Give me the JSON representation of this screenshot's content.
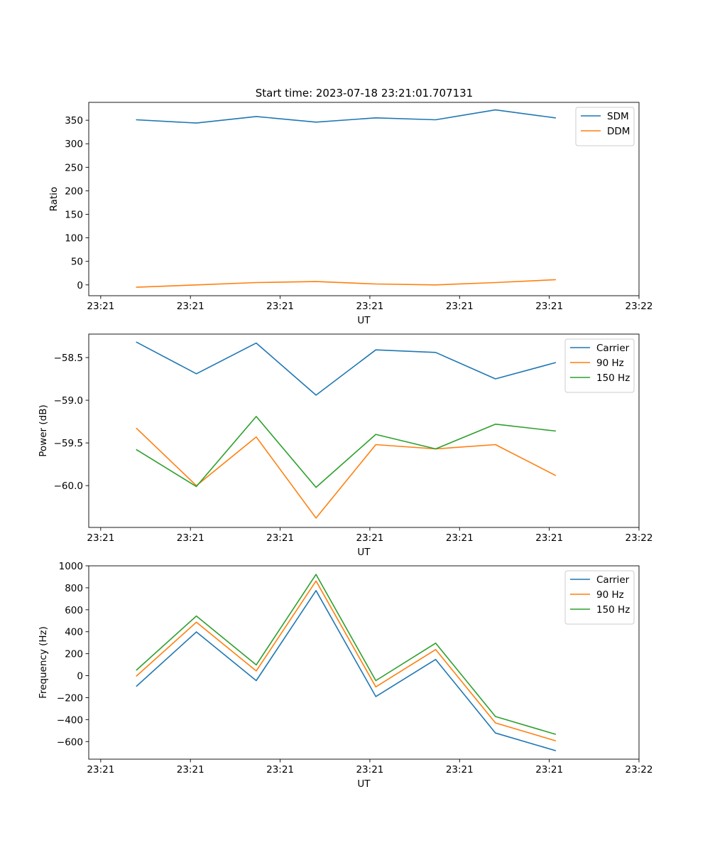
{
  "figure": {
    "title": "Start time: 2023-07-18 23:21:01.707131"
  },
  "colors": {
    "blue": "#1f77b4",
    "orange": "#ff7f0e",
    "green": "#2ca02c"
  },
  "chart_data": [
    {
      "type": "line",
      "title": "Start time: 2023-07-18 23:21:01.707131",
      "xlabel": "UT",
      "ylabel": "Ratio",
      "x": [
        1,
        2,
        3,
        4,
        5,
        6,
        7,
        8
      ],
      "xlim": [
        0.2,
        9.4
      ],
      "xticks": [
        0.4,
        1.9,
        3.4,
        4.9,
        6.4,
        7.9,
        9.4
      ],
      "xtick_labels": [
        "23:21",
        "23:21",
        "23:21",
        "23:21",
        "23:21",
        "23:21",
        "23:22"
      ],
      "ylim": [
        -23,
        388
      ],
      "yticks": [
        0,
        50,
        100,
        150,
        200,
        250,
        300,
        350
      ],
      "ytick_labels": [
        "0",
        "50",
        "100",
        "150",
        "200",
        "250",
        "300",
        "350"
      ],
      "grid": false,
      "legend": "top-right",
      "series": [
        {
          "name": "SDM",
          "color": "#1f77b4",
          "values": [
            351,
            344,
            358,
            346,
            355,
            351,
            372,
            355
          ]
        },
        {
          "name": "DDM",
          "color": "#ff7f0e",
          "values": [
            -5,
            0,
            5,
            7,
            2,
            0,
            5,
            11
          ]
        }
      ]
    },
    {
      "type": "line",
      "title": "",
      "xlabel": "UT",
      "ylabel": "Power (dB)",
      "x": [
        1,
        2,
        3,
        4,
        5,
        6,
        7,
        8
      ],
      "xlim": [
        0.2,
        9.4
      ],
      "xticks": [
        0.4,
        1.9,
        3.4,
        4.9,
        6.4,
        7.9,
        9.4
      ],
      "xtick_labels": [
        "23:21",
        "23:21",
        "23:21",
        "23:21",
        "23:21",
        "23:21",
        "23:22"
      ],
      "ylim": [
        -60.49,
        -58.225
      ],
      "yticks": [
        -60.0,
        -59.5,
        -59.0,
        -58.5
      ],
      "ytick_labels": [
        "−60.0",
        "−59.5",
        "−59.0",
        "−58.5"
      ],
      "grid": false,
      "legend": "top-right",
      "series": [
        {
          "name": "Carrier",
          "color": "#1f77b4",
          "values": [
            -58.32,
            -58.69,
            -58.33,
            -58.94,
            -58.41,
            -58.44,
            -58.75,
            -58.56
          ]
        },
        {
          "name": "90 Hz",
          "color": "#ff7f0e",
          "values": [
            -59.33,
            -60.0,
            -59.43,
            -60.38,
            -59.52,
            -59.57,
            -59.52,
            -59.88
          ]
        },
        {
          "name": "150 Hz",
          "color": "#2ca02c",
          "values": [
            -59.58,
            -60.01,
            -59.19,
            -60.02,
            -59.4,
            -59.57,
            -59.28,
            -59.36
          ]
        }
      ]
    },
    {
      "type": "line",
      "title": "",
      "xlabel": "UT",
      "ylabel": "Frequency (Hz)",
      "x": [
        1,
        2,
        3,
        4,
        5,
        6,
        7,
        8
      ],
      "xlim": [
        0.2,
        9.4
      ],
      "xticks": [
        0.4,
        1.9,
        3.4,
        4.9,
        6.4,
        7.9,
        9.4
      ],
      "xtick_labels": [
        "23:21",
        "23:21",
        "23:21",
        "23:21",
        "23:21",
        "23:21",
        "23:22"
      ],
      "ylim": [
        -760,
        1000
      ],
      "yticks": [
        -600,
        -400,
        -200,
        0,
        200,
        400,
        600,
        800,
        1000
      ],
      "ytick_labels": [
        "−600",
        "−400",
        "−200",
        "0",
        "200",
        "400",
        "600",
        "800",
        "1000"
      ],
      "grid": false,
      "legend": "top-right",
      "series": [
        {
          "name": "Carrier",
          "color": "#1f77b4",
          "values": [
            -95,
            398,
            -45,
            775,
            -190,
            148,
            -522,
            -682
          ]
        },
        {
          "name": "90 Hz",
          "color": "#ff7f0e",
          "values": [
            -2,
            487,
            43,
            862,
            -102,
            238,
            -430,
            -592
          ]
        },
        {
          "name": "150 Hz",
          "color": "#2ca02c",
          "values": [
            52,
            543,
            98,
            922,
            -45,
            296,
            -372,
            -533
          ]
        }
      ]
    }
  ]
}
